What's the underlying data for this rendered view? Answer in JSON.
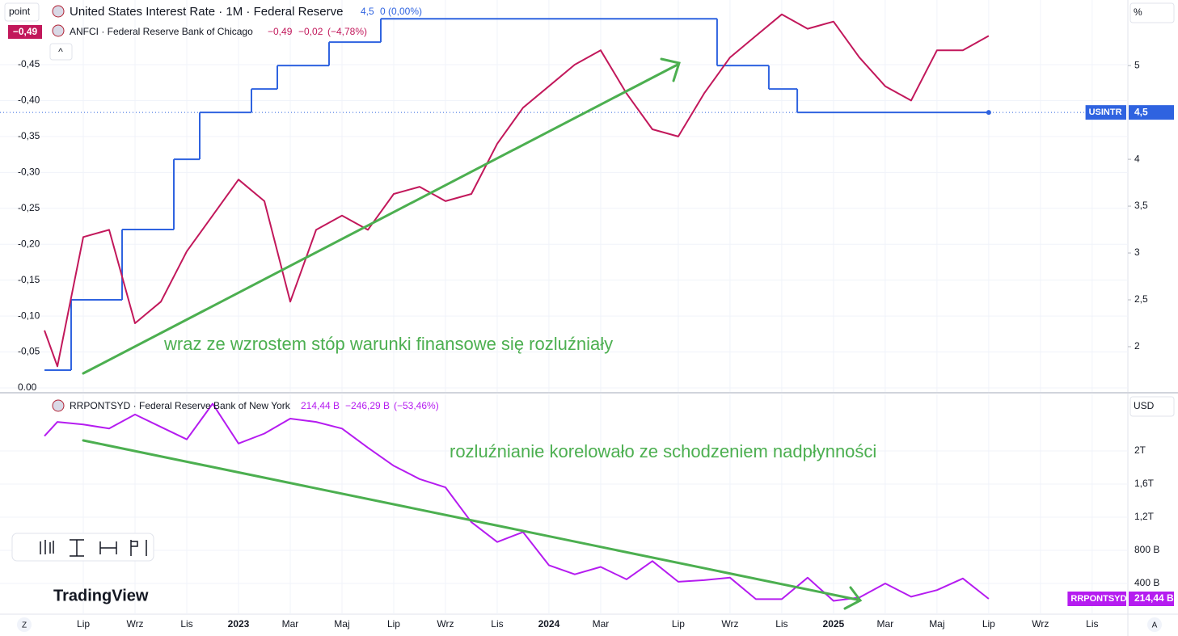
{
  "header": {
    "button": "point",
    "collapse": "^",
    "currency_top": "%",
    "currency_bottom": "USD",
    "brand": "TradingView",
    "corner_left": "Z",
    "corner_right": "A"
  },
  "chart_data": [
    {
      "type": "line",
      "legend": [
        {
          "title": "United States Interest Rate · 1M · Federal Reserve",
          "value": "4,5",
          "change": "0 (0,00%)"
        },
        {
          "badge": "−0,49",
          "title": "ANFCI · Federal Reserve Bank of Chicago",
          "value": "−0,49",
          "change": "−0,02",
          "percent": "(−4,78%)"
        }
      ],
      "annotation": "wraz ze wzrostem stóp warunki finansowe się rozluźniały",
      "xlim": [
        -3.22,
        40.38
      ],
      "xticks": [
        0,
        2,
        4,
        6,
        8,
        10,
        12,
        14,
        16,
        18,
        20,
        23,
        25,
        27,
        29,
        31,
        33,
        35,
        37,
        39
      ],
      "ylim": [
        0,
        -0.54
      ],
      "yticks": [
        {
          "value": 0,
          "label": "0.00"
        },
        {
          "value": -0.05,
          "label": "-0,05"
        },
        {
          "value": -0.1,
          "label": "-0,10"
        },
        {
          "value": -0.15,
          "label": "-0,15"
        },
        {
          "value": -0.2,
          "label": "-0,20"
        },
        {
          "value": -0.25,
          "label": "-0,25"
        },
        {
          "value": -0.3,
          "label": "-0,30"
        },
        {
          "value": -0.35,
          "label": "-0,35"
        },
        {
          "value": -0.4,
          "label": "-0,40"
        },
        {
          "value": -0.45,
          "label": "-0,45"
        }
      ],
      "y2lim": [
        1.56,
        5.7
      ],
      "y2ticks": [
        2,
        {
          "value": 2.5,
          "label": "2,5"
        },
        3,
        {
          "value": 3.5,
          "label": "3,5"
        },
        4,
        5
      ],
      "grid": true,
      "series": [
        {
          "name": "USINTR",
          "color": "#2f63e0",
          "axis": "y2",
          "step": true,
          "badge": "4,5",
          "x": [
            -1.5,
            -0.47,
            1.5,
            3.5,
            4.5,
            6.5,
            7.5,
            9.5,
            11.5,
            24.5,
            26.5,
            27.6,
            35
          ],
          "values": [
            1.75,
            2.5,
            3.25,
            4.0,
            4.5,
            4.75,
            5.0,
            5.25,
            5.5,
            5.0,
            4.75,
            4.5,
            4.5
          ]
        },
        {
          "name": "ANFCI",
          "color": "#c2185b",
          "x": [
            -1.5,
            -1,
            0,
            1,
            2,
            3,
            4,
            5,
            6,
            7,
            8,
            9,
            10,
            11,
            12,
            13,
            14,
            15,
            16,
            17,
            18,
            19,
            20,
            21,
            22,
            23,
            24,
            25,
            26,
            27,
            28,
            29,
            30,
            31,
            32,
            33,
            34,
            35
          ],
          "values": [
            -0.08,
            -0.03,
            -0.21,
            -0.22,
            -0.09,
            -0.12,
            -0.19,
            -0.24,
            -0.29,
            -0.26,
            -0.12,
            -0.22,
            -0.24,
            -0.22,
            -0.27,
            -0.28,
            -0.26,
            -0.27,
            -0.34,
            -0.39,
            -0.42,
            -0.45,
            -0.47,
            -0.41,
            -0.36,
            -0.35,
            -0.41,
            -0.46,
            -0.49,
            -0.52,
            -0.5,
            -0.51,
            -0.46,
            -0.42,
            -0.4,
            -0.47,
            -0.47,
            -0.49
          ]
        }
      ]
    },
    {
      "type": "line",
      "legend": [
        {
          "title": "RRPONTSYD · Federal Reserve Bank of New York",
          "value": "214,44 B",
          "change": "−246,29 B",
          "percent": "(−53,46%)"
        }
      ],
      "annotation": "rozluźnianie korelowało ze schodzeniem nadpłynności",
      "xlim": [
        -3.22,
        40.38
      ],
      "xticks": [
        {
          "value": 0,
          "label": "Lip"
        },
        {
          "value": 2,
          "label": "Wrz"
        },
        {
          "value": 4,
          "label": "Lis"
        },
        {
          "value": 6,
          "label": "2023"
        },
        {
          "value": 8,
          "label": "Mar"
        },
        {
          "value": 10,
          "label": "Maj"
        },
        {
          "value": 12,
          "label": "Lip"
        },
        {
          "value": 14,
          "label": "Wrz"
        },
        {
          "value": 16,
          "label": "Lis"
        },
        {
          "value": 18,
          "label": "2024"
        },
        {
          "value": 20,
          "label": "Mar"
        },
        {
          "value": 23,
          "label": "Lip"
        },
        {
          "value": 25,
          "label": "Wrz"
        },
        {
          "value": 27,
          "label": "Lis"
        },
        {
          "value": 29,
          "label": "2025"
        },
        {
          "value": 31,
          "label": "Mar"
        },
        {
          "value": 33,
          "label": "Maj"
        },
        {
          "value": 35,
          "label": "Lip"
        },
        {
          "value": 37,
          "label": "Wrz"
        },
        {
          "value": 39,
          "label": "Lis"
        }
      ],
      "ylim": [
        29,
        2683
      ],
      "yticks": [
        {
          "value": 400,
          "label": "400 B"
        },
        {
          "value": 800,
          "label": "800 B"
        },
        {
          "value": 1200,
          "label": "1,2T"
        },
        {
          "value": 1600,
          "label": "1,6T"
        },
        {
          "value": 2000,
          "label": "2T"
        }
      ],
      "grid": true,
      "series": [
        {
          "name": "RRPONTSYD",
          "color": "#b51cf0",
          "badge": "214,44 B",
          "x": [
            -1.5,
            -1,
            0,
            1,
            2,
            3,
            4,
            5,
            6,
            7,
            8,
            9,
            10,
            11,
            12,
            13,
            14,
            15,
            16,
            17,
            18,
            19,
            20,
            21,
            22,
            23,
            24,
            25,
            26,
            27,
            28,
            29,
            30,
            31,
            32,
            33,
            34,
            35
          ],
          "values": [
            2180,
            2350,
            2320,
            2270,
            2440,
            2290,
            2140,
            2570,
            2090,
            2210,
            2390,
            2350,
            2270,
            2040,
            1820,
            1660,
            1560,
            1140,
            900,
            1020,
            620,
            510,
            600,
            450,
            670,
            420,
            440,
            470,
            210,
            210,
            470,
            190,
            230,
            400,
            240,
            320,
            460,
            214.44
          ]
        }
      ]
    }
  ]
}
